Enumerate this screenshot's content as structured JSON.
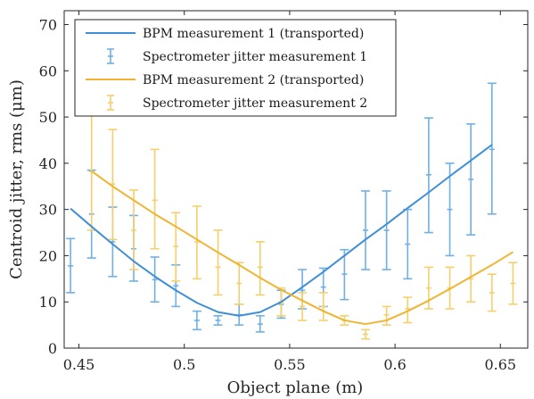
{
  "chart_data": {
    "type": "line",
    "xlabel": "Object plane (m)",
    "ylabel": "Centroid jitter, rms (μm)",
    "xlim": [
      0.443,
      0.663
    ],
    "ylim": [
      0,
      73
    ],
    "xticks": [
      0.45,
      0.5,
      0.55,
      0.6,
      0.65
    ],
    "xtick_labels": [
      "0.45",
      "0.5",
      "0.55",
      "0.6",
      "0.65"
    ],
    "yticks": [
      0,
      10,
      20,
      30,
      40,
      50,
      60,
      70
    ],
    "ytick_labels": [
      "0",
      "10",
      "20",
      "30",
      "40",
      "50",
      "60",
      "70"
    ],
    "grid": false,
    "legend_position": "top-left",
    "colors": {
      "series1": "#3f8fd6",
      "series2": "#f0b431",
      "errorbar1": "#6fb0e6",
      "errorbar2": "#f5cf6a"
    },
    "series": [
      {
        "name": "BPM measurement 1 (transported)",
        "kind": "line",
        "color": "#3f8fd6",
        "x": [
          0.446,
          0.456,
          0.466,
          0.476,
          0.486,
          0.496,
          0.506,
          0.516,
          0.526,
          0.536,
          0.546,
          0.556,
          0.566,
          0.576,
          0.586,
          0.596,
          0.606,
          0.616,
          0.626,
          0.636,
          0.646
        ],
        "y": [
          30.2,
          26.3,
          22.5,
          18.8,
          15.5,
          12.5,
          9.8,
          7.8,
          7.0,
          7.8,
          10.0,
          13.2,
          16.5,
          20.0,
          23.5,
          26.8,
          30.3,
          33.7,
          37.2,
          40.6,
          44.0
        ]
      },
      {
        "name": "Spectrometer jitter measurement 1",
        "kind": "errorbar",
        "color": "#6fb0e6",
        "x": [
          0.446,
          0.456,
          0.466,
          0.476,
          0.486,
          0.496,
          0.506,
          0.516,
          0.526,
          0.536,
          0.546,
          0.556,
          0.566,
          0.576,
          0.586,
          0.596,
          0.606,
          0.616,
          0.626,
          0.636,
          0.646
        ],
        "y": [
          17.8,
          29.0,
          23.0,
          21.5,
          14.8,
          13.5,
          6.0,
          6.0,
          7.2,
          5.2,
          9.5,
          12.5,
          13.2,
          16.0,
          25.5,
          25.5,
          22.5,
          37.5,
          30.0,
          36.5,
          43.0
        ],
        "low": [
          12.0,
          19.5,
          15.5,
          14.5,
          10.0,
          9.0,
          4.0,
          5.0,
          5.0,
          3.5,
          6.5,
          8.5,
          9.0,
          10.5,
          17.0,
          17.0,
          15.0,
          25.0,
          20.0,
          24.5,
          29.0
        ],
        "high": [
          23.7,
          38.5,
          30.5,
          28.7,
          19.7,
          18.0,
          8.0,
          7.0,
          9.5,
          7.0,
          12.5,
          17.0,
          17.3,
          21.3,
          34.0,
          34.0,
          30.0,
          49.8,
          40.0,
          48.5,
          57.3
        ]
      },
      {
        "name": "BPM measurement 2 (transported)",
        "kind": "line",
        "color": "#f0b431",
        "x": [
          0.456,
          0.466,
          0.476,
          0.486,
          0.496,
          0.506,
          0.516,
          0.526,
          0.536,
          0.546,
          0.556,
          0.566,
          0.576,
          0.586,
          0.596,
          0.606,
          0.616,
          0.626,
          0.636,
          0.646,
          0.656
        ],
        "y": [
          38.3,
          35.0,
          32.0,
          29.0,
          26.3,
          23.5,
          20.7,
          18.0,
          15.2,
          12.6,
          10.3,
          8.0,
          6.0,
          5.2,
          6.0,
          8.0,
          10.3,
          12.8,
          15.4,
          18.0,
          20.8
        ]
      },
      {
        "name": "Spectrometer jitter measurement 2",
        "kind": "errorbar",
        "color": "#f5cf6a",
        "x": [
          0.456,
          0.466,
          0.476,
          0.486,
          0.496,
          0.506,
          0.516,
          0.526,
          0.536,
          0.546,
          0.556,
          0.566,
          0.576,
          0.586,
          0.596,
          0.606,
          0.616,
          0.626,
          0.636,
          0.646,
          0.656
        ],
        "y": [
          38.2,
          35.5,
          25.5,
          32.0,
          22.0,
          23.0,
          17.5,
          14.0,
          17.5,
          10.0,
          9.0,
          9.0,
          6.0,
          3.0,
          7.2,
          8.5,
          13.0,
          13.0,
          15.0,
          12.0,
          14.0
        ],
        "low": [
          25.5,
          23.5,
          17.0,
          21.5,
          14.5,
          15.0,
          11.5,
          9.5,
          11.5,
          7.0,
          6.0,
          6.0,
          5.0,
          2.0,
          5.0,
          5.5,
          8.5,
          8.5,
          10.0,
          8.0,
          9.5
        ],
        "high": [
          51.0,
          47.3,
          34.2,
          43.0,
          29.3,
          30.7,
          25.5,
          18.5,
          23.0,
          13.0,
          12.0,
          12.0,
          7.0,
          4.0,
          9.0,
          11.0,
          17.5,
          17.5,
          20.0,
          16.0,
          18.5
        ]
      }
    ]
  }
}
